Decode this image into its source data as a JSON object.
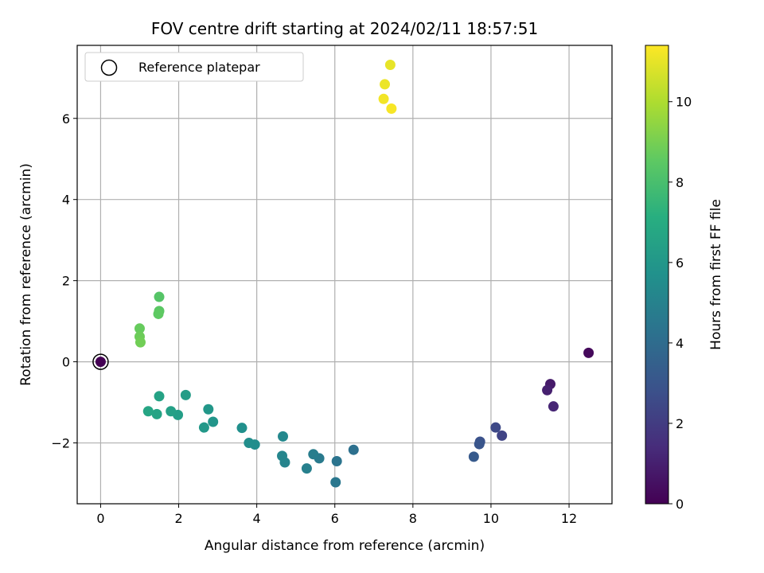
{
  "chart_data": {
    "type": "scatter",
    "title": "FOV centre drift starting at 2024/02/11 18:57:51",
    "xlabel": "Angular distance from reference (arcmin)",
    "ylabel": "Rotation from reference (arcmin)",
    "xlim": [
      -0.6,
      13.1
    ],
    "ylim": [
      -3.5,
      7.8
    ],
    "xticks": [
      0,
      2,
      4,
      6,
      8,
      10,
      12
    ],
    "yticks": [
      -2,
      0,
      2,
      4,
      6
    ],
    "grid": true,
    "legend": {
      "placement": "upper-left",
      "entries": [
        "Reference platepar"
      ]
    },
    "reference_point": {
      "x": 0,
      "y": 0
    },
    "colorbar": {
      "label": "Hours from first FF file",
      "colormap": "viridis",
      "range": [
        0,
        11.4
      ],
      "ticks": [
        0,
        2,
        4,
        6,
        8,
        10
      ]
    },
    "points": [
      {
        "x": 0.0,
        "y": 0.0,
        "c": 0.0
      },
      {
        "x": 12.5,
        "y": 0.22,
        "c": 0.25
      },
      {
        "x": 11.52,
        "y": -0.55,
        "c": 0.8
      },
      {
        "x": 11.44,
        "y": -0.7,
        "c": 1.0
      },
      {
        "x": 11.6,
        "y": -1.1,
        "c": 1.2
      },
      {
        "x": 10.28,
        "y": -1.82,
        "c": 2.3
      },
      {
        "x": 10.12,
        "y": -1.62,
        "c": 2.5
      },
      {
        "x": 9.72,
        "y": -1.97,
        "c": 2.85
      },
      {
        "x": 9.7,
        "y": -2.03,
        "c": 3.0
      },
      {
        "x": 9.56,
        "y": -2.34,
        "c": 3.2
      },
      {
        "x": 6.48,
        "y": -2.17,
        "c": 4.2
      },
      {
        "x": 6.05,
        "y": -2.45,
        "c": 4.35
      },
      {
        "x": 6.02,
        "y": -2.97,
        "c": 4.5
      },
      {
        "x": 5.6,
        "y": -2.38,
        "c": 4.65
      },
      {
        "x": 5.45,
        "y": -2.28,
        "c": 4.8
      },
      {
        "x": 5.28,
        "y": -2.63,
        "c": 4.9
      },
      {
        "x": 4.72,
        "y": -2.48,
        "c": 5.1
      },
      {
        "x": 4.65,
        "y": -2.32,
        "c": 5.2
      },
      {
        "x": 4.67,
        "y": -1.84,
        "c": 5.3
      },
      {
        "x": 3.95,
        "y": -2.04,
        "c": 5.5
      },
      {
        "x": 3.8,
        "y": -2.0,
        "c": 5.55
      },
      {
        "x": 3.62,
        "y": -1.63,
        "c": 5.65
      },
      {
        "x": 2.88,
        "y": -1.48,
        "c": 5.9
      },
      {
        "x": 2.76,
        "y": -1.17,
        "c": 6.0
      },
      {
        "x": 2.65,
        "y": -1.62,
        "c": 6.05
      },
      {
        "x": 2.18,
        "y": -0.82,
        "c": 6.25
      },
      {
        "x": 1.98,
        "y": -1.31,
        "c": 6.35
      },
      {
        "x": 1.8,
        "y": -1.22,
        "c": 6.45
      },
      {
        "x": 1.5,
        "y": -0.85,
        "c": 6.55
      },
      {
        "x": 1.44,
        "y": -1.29,
        "c": 6.6
      },
      {
        "x": 1.22,
        "y": -1.22,
        "c": 6.7
      },
      {
        "x": 1.5,
        "y": 1.6,
        "c": 8.3
      },
      {
        "x": 1.5,
        "y": 1.25,
        "c": 8.45
      },
      {
        "x": 1.48,
        "y": 1.18,
        "c": 8.55
      },
      {
        "x": 1.0,
        "y": 0.82,
        "c": 8.7
      },
      {
        "x": 1.0,
        "y": 0.62,
        "c": 8.8
      },
      {
        "x": 1.02,
        "y": 0.48,
        "c": 8.9
      },
      {
        "x": 7.42,
        "y": 7.32,
        "c": 11.0
      },
      {
        "x": 7.28,
        "y": 6.84,
        "c": 11.1
      },
      {
        "x": 7.25,
        "y": 6.48,
        "c": 11.2
      },
      {
        "x": 7.45,
        "y": 6.24,
        "c": 11.3
      }
    ]
  }
}
